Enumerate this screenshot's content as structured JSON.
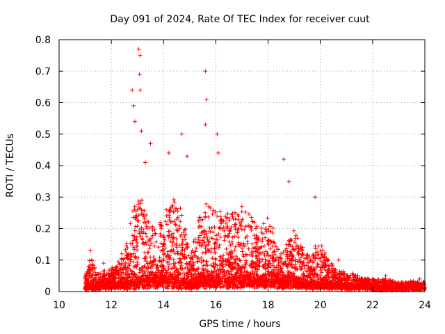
{
  "chart_data": {
    "type": "scatter",
    "title": "Day 091 of 2024, Rate Of TEC Index for receiver cuut",
    "xlabel": "GPS time / hours",
    "ylabel": "ROTI / TECUs",
    "xlim": [
      10,
      24
    ],
    "ylim": [
      0,
      0.8
    ],
    "x_ticks": [
      "10",
      "12",
      "14",
      "16",
      "18",
      "20",
      "22",
      "24"
    ],
    "y_ticks": [
      "0",
      "0.1",
      "0.2",
      "0.3",
      "0.4",
      "0.5",
      "0.6",
      "0.7",
      "0.8"
    ],
    "grid": true,
    "marker": "plus",
    "color": "#ff0000",
    "notable_points": [
      {
        "x": 11.2,
        "y": 0.13
      },
      {
        "x": 11.7,
        "y": 0.09
      },
      {
        "x": 12.4,
        "y": 0.12
      },
      {
        "x": 12.8,
        "y": 0.64
      },
      {
        "x": 12.85,
        "y": 0.59
      },
      {
        "x": 12.9,
        "y": 0.54
      },
      {
        "x": 13.05,
        "y": 0.77
      },
      {
        "x": 13.1,
        "y": 0.75
      },
      {
        "x": 13.08,
        "y": 0.69
      },
      {
        "x": 13.1,
        "y": 0.64
      },
      {
        "x": 13.15,
        "y": 0.51
      },
      {
        "x": 13.3,
        "y": 0.41
      },
      {
        "x": 13.5,
        "y": 0.47
      },
      {
        "x": 14.2,
        "y": 0.44
      },
      {
        "x": 14.7,
        "y": 0.5
      },
      {
        "x": 14.9,
        "y": 0.43
      },
      {
        "x": 15.6,
        "y": 0.7
      },
      {
        "x": 15.65,
        "y": 0.61
      },
      {
        "x": 15.6,
        "y": 0.53
      },
      {
        "x": 16.05,
        "y": 0.5
      },
      {
        "x": 16.1,
        "y": 0.44
      },
      {
        "x": 18.6,
        "y": 0.42
      },
      {
        "x": 18.8,
        "y": 0.35
      },
      {
        "x": 19.8,
        "y": 0.3
      },
      {
        "x": 20.7,
        "y": 0.1
      },
      {
        "x": 22.5,
        "y": 0.05
      },
      {
        "x": 23.8,
        "y": 0.04
      }
    ],
    "envelope": [
      {
        "x": 11.0,
        "base": 0.01,
        "upper": 0.05
      },
      {
        "x": 11.2,
        "base": 0.015,
        "upper": 0.12
      },
      {
        "x": 11.5,
        "base": 0.015,
        "upper": 0.06
      },
      {
        "x": 12.0,
        "base": 0.02,
        "upper": 0.07
      },
      {
        "x": 12.5,
        "base": 0.02,
        "upper": 0.12
      },
      {
        "x": 12.8,
        "base": 0.02,
        "upper": 0.26
      },
      {
        "x": 13.1,
        "base": 0.03,
        "upper": 0.32
      },
      {
        "x": 13.5,
        "base": 0.03,
        "upper": 0.2
      },
      {
        "x": 14.0,
        "base": 0.03,
        "upper": 0.24
      },
      {
        "x": 14.3,
        "base": 0.03,
        "upper": 0.3
      },
      {
        "x": 14.7,
        "base": 0.03,
        "upper": 0.28
      },
      {
        "x": 15.0,
        "base": 0.02,
        "upper": 0.1
      },
      {
        "x": 15.3,
        "base": 0.03,
        "upper": 0.22
      },
      {
        "x": 15.6,
        "base": 0.03,
        "upper": 0.3
      },
      {
        "x": 16.0,
        "base": 0.03,
        "upper": 0.26
      },
      {
        "x": 16.5,
        "base": 0.03,
        "upper": 0.26
      },
      {
        "x": 17.0,
        "base": 0.03,
        "upper": 0.28
      },
      {
        "x": 17.5,
        "base": 0.03,
        "upper": 0.22
      },
      {
        "x": 18.0,
        "base": 0.03,
        "upper": 0.26
      },
      {
        "x": 18.5,
        "base": 0.03,
        "upper": 0.12
      },
      {
        "x": 19.0,
        "base": 0.03,
        "upper": 0.2
      },
      {
        "x": 19.5,
        "base": 0.02,
        "upper": 0.12
      },
      {
        "x": 20.0,
        "base": 0.02,
        "upper": 0.16
      },
      {
        "x": 20.5,
        "base": 0.02,
        "upper": 0.08
      },
      {
        "x": 21.0,
        "base": 0.015,
        "upper": 0.06
      },
      {
        "x": 21.5,
        "base": 0.015,
        "upper": 0.05
      },
      {
        "x": 22.0,
        "base": 0.01,
        "upper": 0.04
      },
      {
        "x": 22.5,
        "base": 0.01,
        "upper": 0.04
      },
      {
        "x": 23.0,
        "base": 0.01,
        "upper": 0.03
      },
      {
        "x": 23.5,
        "base": 0.01,
        "upper": 0.035
      },
      {
        "x": 24.0,
        "base": 0.01,
        "upper": 0.03
      }
    ]
  }
}
